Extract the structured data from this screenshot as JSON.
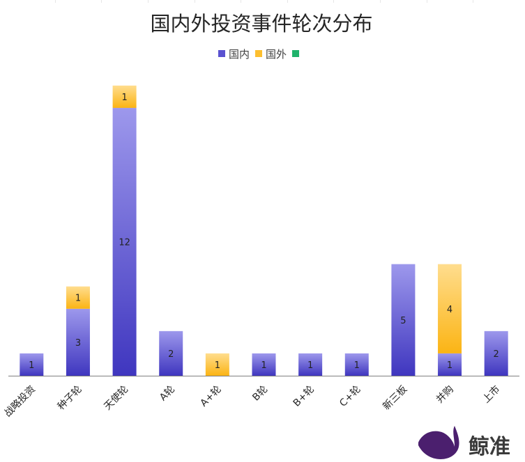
{
  "chart_data": {
    "type": "bar",
    "stacked": true,
    "title": "国内外投资事件轮次分布",
    "categories": [
      "战略投资",
      "种子轮",
      "天使轮",
      "A轮",
      "A+轮",
      "B轮",
      "B+轮",
      "C+轮",
      "新三板",
      "并购",
      "上市"
    ],
    "series": [
      {
        "name": "国内",
        "color": "#5a52d0",
        "values": [
          1,
          3,
          12,
          2,
          0,
          1,
          1,
          1,
          5,
          1,
          2
        ]
      },
      {
        "name": "国外",
        "color": "#fdbf2f",
        "values": [
          0,
          1,
          1,
          0,
          1,
          0,
          0,
          0,
          0,
          4,
          0
        ]
      },
      {
        "name": "",
        "color": "#1fb36b",
        "values": [
          0,
          0,
          0,
          0,
          0,
          0,
          0,
          0,
          0,
          0,
          0
        ]
      }
    ],
    "xlabel": "",
    "ylabel": "",
    "ylim": [
      0,
      13
    ],
    "grid": false,
    "legend": "top-center"
  },
  "brand": {
    "name": "鲸准"
  }
}
